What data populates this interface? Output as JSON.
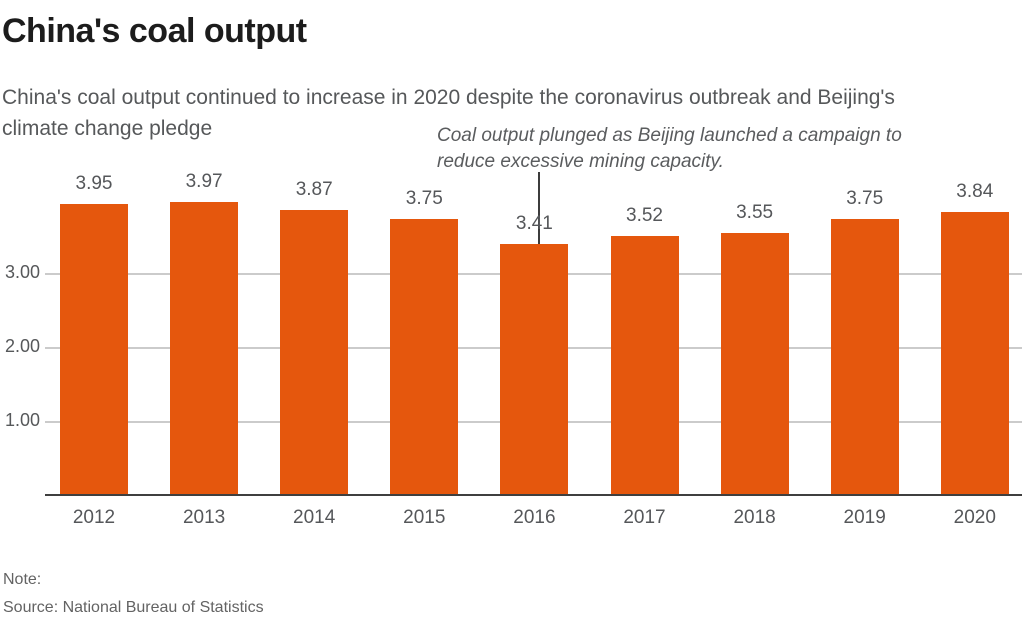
{
  "page": {
    "title": "China's coal output",
    "subtitle_lines": [
      "China's coal output continued to increase in 2020 despite the coronavirus outbreak and Beijing's",
      "climate change pledge"
    ],
    "note_label": "Note:",
    "source_label": "Source: National Bureau of Statistics"
  },
  "chart_data": {
    "type": "bar",
    "title": "China's coal output",
    "categories": [
      "2012",
      "2013",
      "2014",
      "2015",
      "2016",
      "2017",
      "2018",
      "2019",
      "2020"
    ],
    "values": [
      3.95,
      3.97,
      3.87,
      3.75,
      3.41,
      3.52,
      3.55,
      3.75,
      3.84
    ],
    "value_labels": [
      "3.95",
      "3.97",
      "3.87",
      "3.75",
      "3.41",
      "3.52",
      "3.55",
      "3.75",
      "3.84"
    ],
    "xlabel": "",
    "ylabel": "",
    "ylim": [
      0,
      4.2
    ],
    "yticks": [
      {
        "value": 1,
        "label": "1.00"
      },
      {
        "value": 2,
        "label": "2.00"
      },
      {
        "value": 3,
        "label": "3.00"
      }
    ],
    "grid": "horizontal",
    "legend": "none",
    "bar_color": "#E5570D",
    "annotation": {
      "lines": [
        "Coal output plunged as Beijing launched a campaign to",
        "reduce excessive mining capacity."
      ],
      "arrow_target_category": "2016",
      "arrow_color": "#3c3c3c"
    }
  }
}
